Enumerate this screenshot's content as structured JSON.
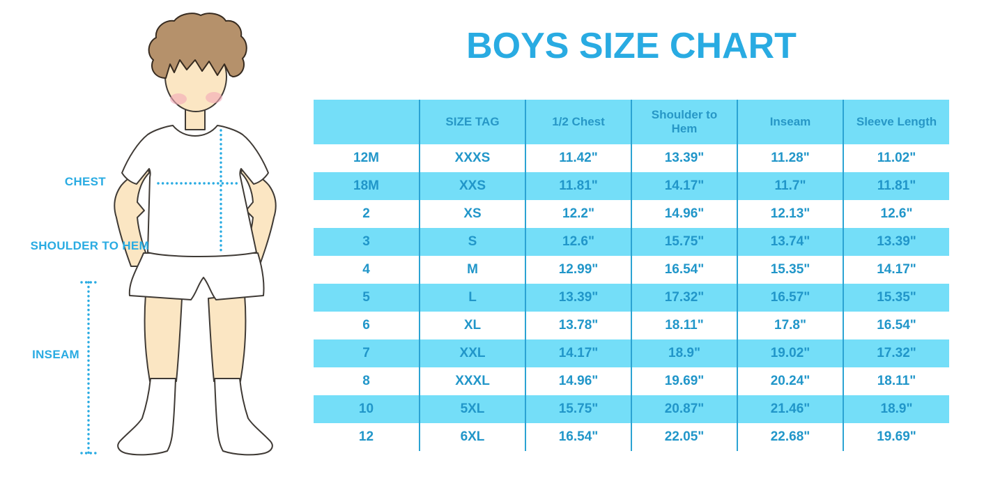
{
  "title": "BOYS SIZE CHART",
  "colors": {
    "accent_blue": "#29ABE2",
    "table_fill_cyan": "#74DEF8",
    "table_text_blue": "#2196C9",
    "column_line_blue": "#2BA3D3",
    "skin": "#FBE6C3",
    "hair_brown": "#B5916B",
    "blush_pink": "#F4A9B8"
  },
  "illustration": {
    "figure": "boy-with-measurement-lines",
    "labels": {
      "chest": "CHEST",
      "shoulder_to_hem": "SHOULDER TO HEM",
      "inseam": "INSEAM"
    }
  },
  "chart_data": {
    "type": "table",
    "title": "BOYS SIZE CHART",
    "columns": [
      "",
      "SIZE TAG",
      "1/2 Chest",
      "Shoulder to Hem",
      "Inseam",
      "Sleeve Length"
    ],
    "rows": [
      [
        "12M",
        "XXXS",
        "11.42\"",
        "13.39\"",
        "11.28\"",
        "11.02\""
      ],
      [
        "18M",
        "XXS",
        "11.81\"",
        "14.17\"",
        "11.7\"",
        "11.81\""
      ],
      [
        "2",
        "XS",
        "12.2\"",
        "14.96\"",
        "12.13\"",
        "12.6\""
      ],
      [
        "3",
        "S",
        "12.6\"",
        "15.75\"",
        "13.74\"",
        "13.39\""
      ],
      [
        "4",
        "M",
        "12.99\"",
        "16.54\"",
        "15.35\"",
        "14.17\""
      ],
      [
        "5",
        "L",
        "13.39\"",
        "17.32\"",
        "16.57\"",
        "15.35\""
      ],
      [
        "6",
        "XL",
        "13.78\"",
        "18.11\"",
        "17.8\"",
        "16.54\""
      ],
      [
        "7",
        "XXL",
        "14.17\"",
        "18.9\"",
        "19.02\"",
        "17.32\""
      ],
      [
        "8",
        "XXXL",
        "14.96\"",
        "19.69\"",
        "20.24\"",
        "18.11\""
      ],
      [
        "10",
        "5XL",
        "15.75\"",
        "20.87\"",
        "21.46\"",
        "18.9\""
      ],
      [
        "12",
        "6XL",
        "16.54\"",
        "22.05\"",
        "22.68\"",
        "19.69\""
      ]
    ]
  }
}
